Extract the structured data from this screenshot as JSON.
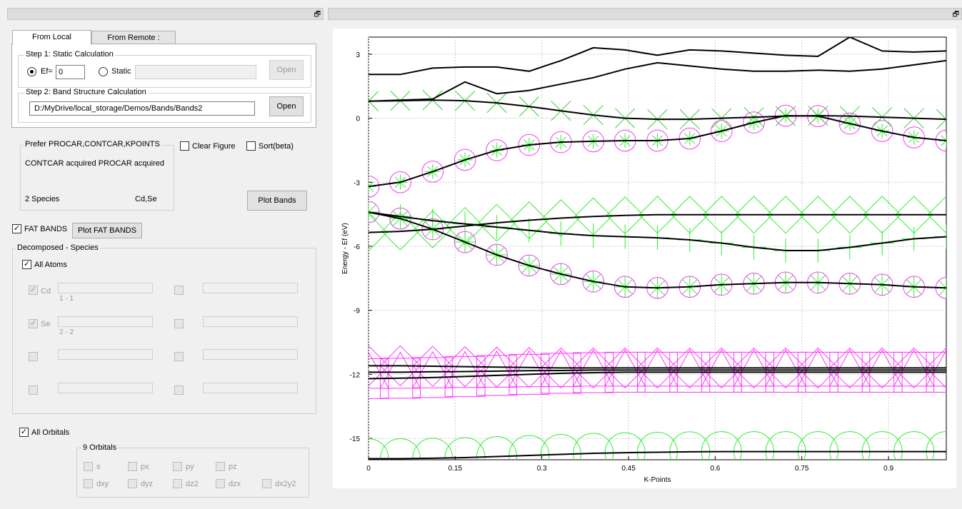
{
  "tabs": [
    {
      "label": "From  Local",
      "active": true
    },
    {
      "label": "From Remote :",
      "active": false
    }
  ],
  "step1": {
    "title": "Step 1: Static Calculation",
    "ef_label": "Ef=",
    "ef_value": "0",
    "static_label": "Static",
    "open_label": "Open"
  },
  "step2": {
    "title": "Step 2: Band Structure Calculation",
    "path": "D:/MyDrive/local_storage/Demos/Bands/Bands2",
    "open_label": "Open"
  },
  "prefer": {
    "title": "Prefer PROCAR,CONTCAR,KPOINTS",
    "status": "CONTCAR acquired  PROCAR acquired",
    "species_count": "2 Species",
    "species_names": "Cd,Se"
  },
  "clear_figure_label": "Clear Figure",
  "sort_label": "Sort(beta)",
  "plot_bands_label": "Plot Bands",
  "fat_bands": {
    "label": "FAT BANDS",
    "checked": true,
    "plot_label": "Plot FAT BANDS"
  },
  "decomposed": {
    "title": "Decomposed - Species",
    "all_atoms_label": "All Atoms",
    "species": [
      {
        "name": "Cd",
        "range": "1 - 1",
        "checked": true
      },
      {
        "name": "Se",
        "range": "2 - 2",
        "checked": true
      }
    ]
  },
  "orbitals": {
    "all_label": "All Orbitals",
    "group_title": "9 Orbitals",
    "row1": [
      "s",
      "px",
      "py",
      "pz"
    ],
    "row2": [
      "dxy",
      "dyz",
      "dz2",
      "dzx",
      "dx2y2"
    ]
  },
  "chart_data": {
    "type": "line",
    "xlabel": "K-Points",
    "ylabel": "Energy - Ef (eV)",
    "xlim": [
      0,
      1
    ],
    "ylim": [
      -16.0,
      3.8
    ],
    "xticks": [
      0,
      0.15,
      0.3,
      0.45,
      0.6,
      0.75,
      0.9
    ],
    "yticks": [
      3,
      0,
      -3,
      -6,
      -9,
      -12,
      -15
    ],
    "grid": true,
    "colors": {
      "bands": "#000000",
      "cd_weight": "#ff33ff",
      "se_weight": "#33ee33"
    },
    "x": [
      0,
      0.055,
      0.111,
      0.167,
      0.222,
      0.278,
      0.333,
      0.389,
      0.444,
      0.5,
      0.556,
      0.611,
      0.667,
      0.722,
      0.778,
      0.833,
      0.889,
      0.944,
      1.0
    ],
    "bands": [
      [
        -15.95,
        -15.95,
        -15.93,
        -15.9,
        -15.85,
        -15.8,
        -15.75,
        -15.7,
        -15.67,
        -15.65,
        -15.63,
        -15.62,
        -15.62,
        -15.62,
        -15.62,
        -15.62,
        -15.62,
        -15.62,
        -15.62
      ],
      [
        -12.2,
        -12.18,
        -12.15,
        -12.1,
        -12.05,
        -12.0,
        -11.95,
        -11.92,
        -11.9,
        -11.9,
        -11.9,
        -11.9,
        -11.9,
        -11.9,
        -11.9,
        -11.9,
        -11.9,
        -11.9,
        -11.9
      ],
      [
        -11.9,
        -11.9,
        -11.88,
        -11.87,
        -11.85,
        -11.83,
        -11.82,
        -11.8,
        -11.8,
        -11.8,
        -11.8,
        -11.8,
        -11.8,
        -11.8,
        -11.8,
        -11.8,
        -11.8,
        -11.8,
        -11.8
      ],
      [
        -11.6,
        -11.6,
        -11.62,
        -11.64,
        -11.66,
        -11.68,
        -11.7,
        -11.7,
        -11.7,
        -11.7,
        -11.7,
        -11.7,
        -11.7,
        -11.7,
        -11.7,
        -11.7,
        -11.7,
        -11.7,
        -11.7
      ],
      [
        -4.4,
        -4.7,
        -5.2,
        -5.8,
        -6.4,
        -6.9,
        -7.3,
        -7.65,
        -7.9,
        -7.95,
        -7.9,
        -7.8,
        -7.75,
        -7.7,
        -7.7,
        -7.75,
        -7.8,
        -7.9,
        -7.95
      ],
      [
        -4.4,
        -4.6,
        -4.8,
        -4.95,
        -5.1,
        -5.25,
        -5.4,
        -5.5,
        -5.55,
        -5.6,
        -5.7,
        -5.85,
        -6.05,
        -6.2,
        -6.2,
        -6.05,
        -5.85,
        -5.65,
        -5.55
      ],
      [
        -5.35,
        -5.3,
        -5.2,
        -5.05,
        -4.9,
        -4.78,
        -4.68,
        -4.6,
        -4.55,
        -4.52,
        -4.52,
        -4.52,
        -4.52,
        -4.52,
        -4.52,
        -4.52,
        -4.52,
        -4.52,
        -4.52
      ],
      [
        -3.2,
        -3.0,
        -2.5,
        -1.95,
        -1.5,
        -1.25,
        -1.12,
        -1.08,
        -1.05,
        -1.05,
        -0.95,
        -0.6,
        -0.2,
        0.12,
        0.1,
        -0.25,
        -0.6,
        -0.9,
        -1.05
      ],
      [
        0.8,
        0.82,
        0.85,
        0.82,
        0.72,
        0.55,
        0.35,
        0.15,
        0.0,
        -0.05,
        -0.05,
        0.0,
        0.05,
        0.1,
        0.12,
        0.1,
        0.05,
        0.0,
        -0.05
      ],
      [
        0.8,
        0.85,
        0.9,
        1.7,
        1.15,
        1.3,
        1.6,
        1.9,
        2.3,
        2.6,
        2.45,
        2.3,
        2.2,
        2.2,
        2.25,
        2.2,
        2.3,
        2.5,
        2.7
      ],
      [
        2.05,
        2.05,
        2.35,
        2.4,
        2.4,
        2.2,
        2.7,
        3.3,
        3.2,
        2.95,
        3.2,
        3.15,
        3.05,
        2.95,
        2.9,
        3.8,
        3.15,
        3.1,
        3.15
      ]
    ],
    "fat_bands": [
      {
        "band": 0,
        "species": "Se",
        "marker": "circle",
        "weight": 1.0
      },
      {
        "band": 1,
        "species": "Cd",
        "marker": "square",
        "weight": 1.0
      },
      {
        "band": 2,
        "species": "Cd",
        "marker": "triangle",
        "weight": 1.0
      },
      {
        "band": 3,
        "species": "Cd",
        "marker": "diamond",
        "weight": 1.0
      },
      {
        "band": 4,
        "species": "Cd",
        "marker": "circle",
        "weight": 0.4
      },
      {
        "band": 4,
        "species": "Se",
        "marker": "star",
        "weight": 0.4
      },
      {
        "band": 5,
        "species": "Se",
        "marker": "plus",
        "weight": 0.5
      },
      {
        "band": 6,
        "species": "Se",
        "marker": "diamond",
        "weight": 0.9
      },
      {
        "band": 7,
        "species": "Cd",
        "marker": "circle",
        "weight": 0.4
      },
      {
        "band": 7,
        "species": "Se",
        "marker": "star",
        "weight": 0.2
      },
      {
        "band": 8,
        "species": "Cd",
        "marker": "x",
        "weight": 0.35
      },
      {
        "band": 8,
        "species": "Se",
        "marker": "x",
        "weight": 0.35
      }
    ]
  }
}
